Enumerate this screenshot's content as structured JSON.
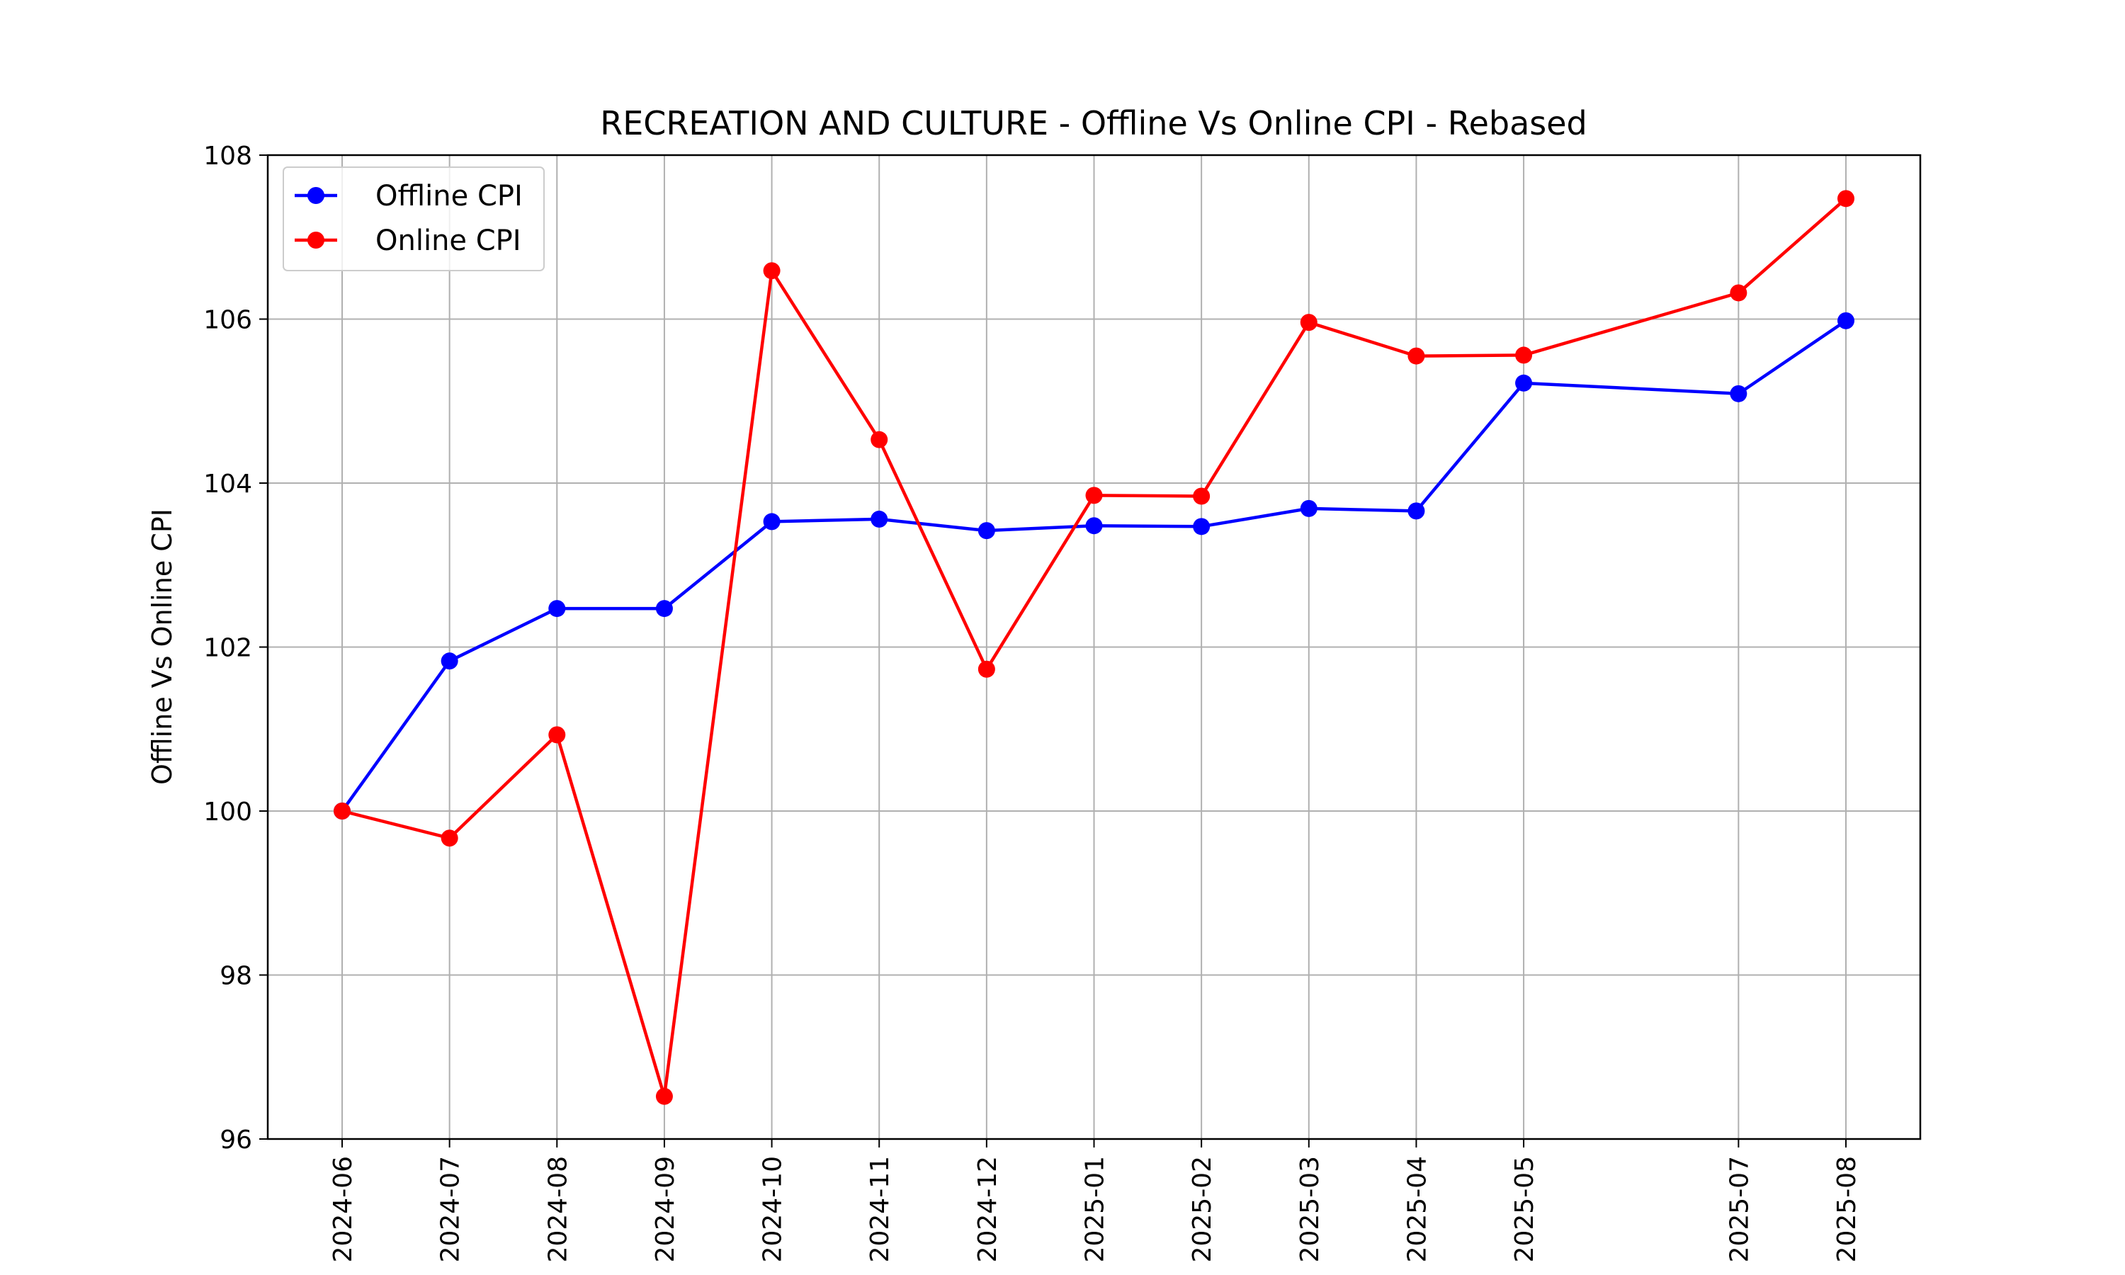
{
  "chart_data": {
    "type": "line",
    "title": "RECREATION AND CULTURE - Offline Vs Online CPI - Rebased",
    "xlabel": "",
    "ylabel": "Offline Vs Online CPI",
    "x": [
      "2024-06",
      "2024-07",
      "2024-08",
      "2024-09",
      "2024-10",
      "2024-11",
      "2024-12",
      "2025-01",
      "2025-02",
      "2025-03",
      "2025-04",
      "2025-05",
      "2025-07",
      "2025-08"
    ],
    "ylim": [
      96,
      108
    ],
    "yticks": [
      96,
      98,
      100,
      102,
      104,
      106,
      108
    ],
    "grid": true,
    "legend_position": "upper-left",
    "series": [
      {
        "name": "Offline CPI",
        "color": "#0000ff",
        "values": [
          100.0,
          101.83,
          102.47,
          102.47,
          103.53,
          103.56,
          103.42,
          103.48,
          103.47,
          103.69,
          103.66,
          105.22,
          105.09,
          105.98
        ]
      },
      {
        "name": "Online CPI",
        "color": "#ff0000",
        "values": [
          100.0,
          99.67,
          100.93,
          96.52,
          106.59,
          104.53,
          101.73,
          103.85,
          103.84,
          105.96,
          105.55,
          105.56,
          106.32,
          107.47
        ]
      }
    ]
  }
}
